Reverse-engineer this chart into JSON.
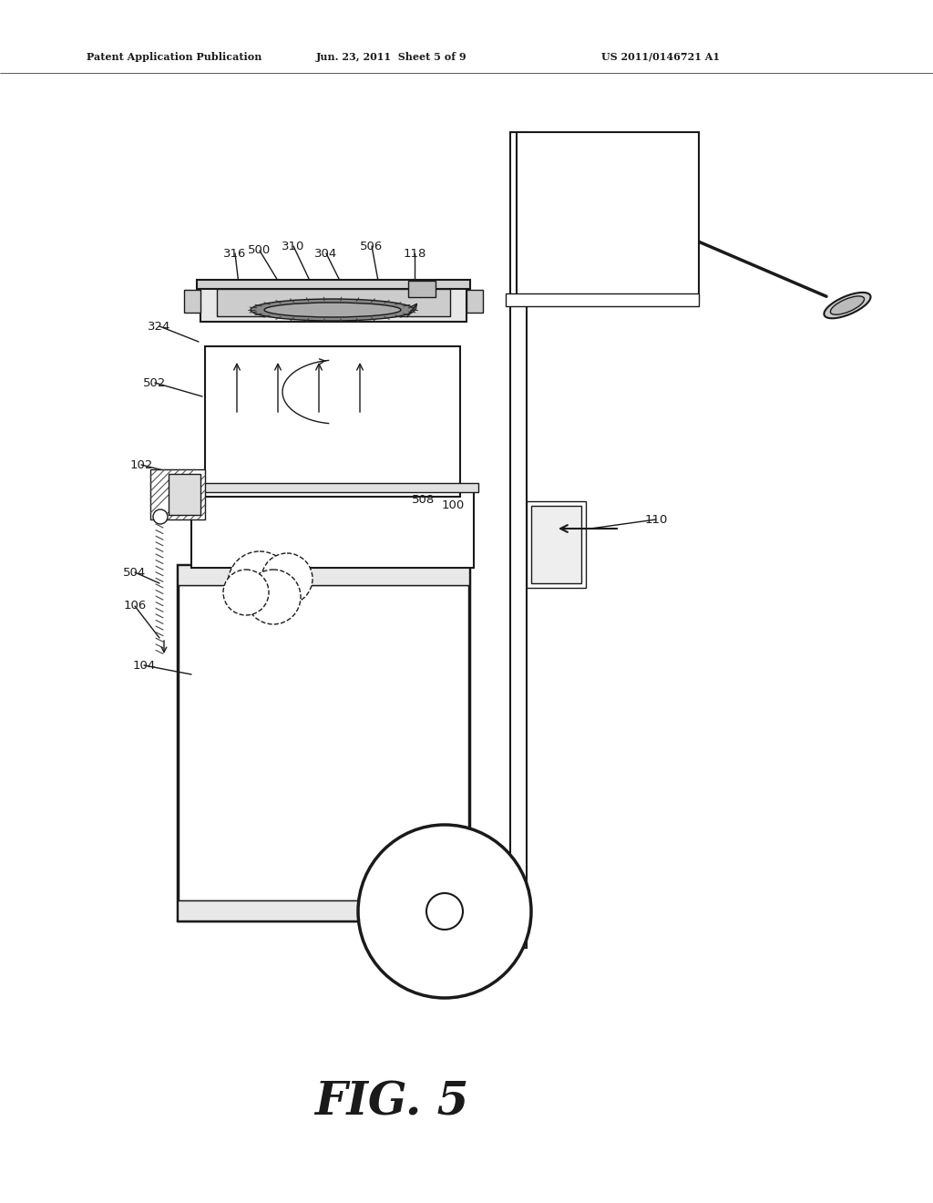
{
  "bg_color": "#ffffff",
  "line_color": "#1a1a1a",
  "header_left": "Patent Application Publication",
  "header_mid": "Jun. 23, 2011  Sheet 5 of 9",
  "header_right": "US 2011/0146721 A1",
  "figure_label": "FIG. 5"
}
